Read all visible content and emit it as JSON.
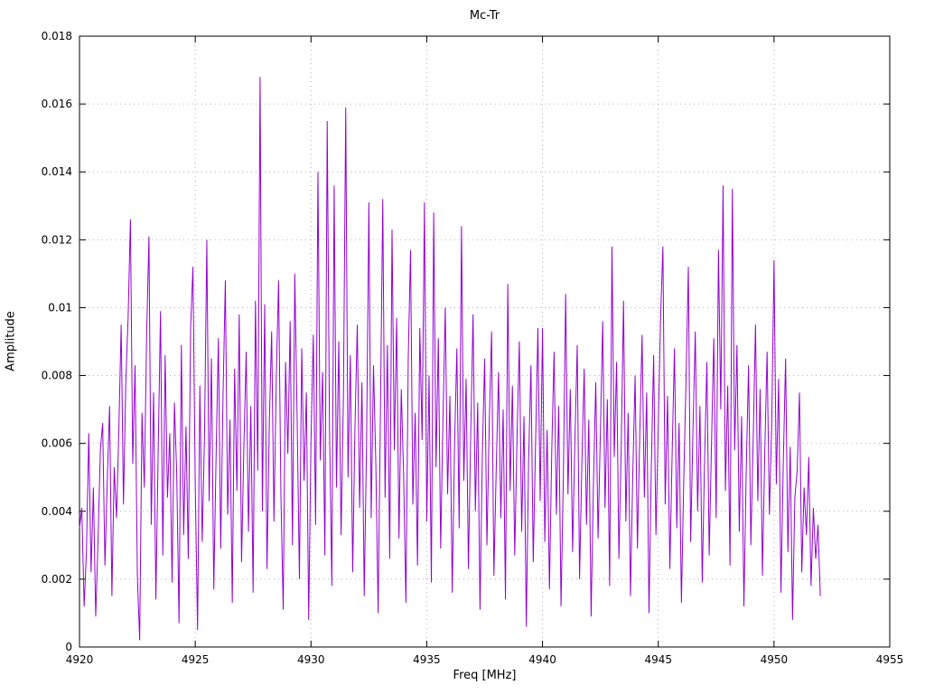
{
  "chart_data": {
    "type": "line",
    "title": "Mc-Tr",
    "xlabel": "Freq [MHz]",
    "ylabel": "Amplitude",
    "xlim": [
      4920,
      4955
    ],
    "ylim": [
      0,
      0.018
    ],
    "xticks": [
      4920,
      4925,
      4930,
      4935,
      4940,
      4945,
      4950,
      4955
    ],
    "xtick_labels": [
      "4920",
      "4925",
      "4930",
      "4935",
      "4940",
      "4945",
      "4950",
      "4955"
    ],
    "yticks": [
      0,
      0.002,
      0.004,
      0.006,
      0.008,
      0.01,
      0.012,
      0.014,
      0.016,
      0.018
    ],
    "ytick_labels": [
      "0",
      "0.002",
      "0.004",
      "0.006",
      "0.008",
      "0.01",
      "0.012",
      "0.014",
      "0.016",
      "0.018"
    ],
    "grid": true,
    "legend": "none",
    "line_color": "#9400d3",
    "grid_color": "#b0b0b0",
    "series": [
      {
        "name": "Mc-Tr",
        "x_start": 4920.0,
        "x_step": 0.1,
        "values": [
          0.0035,
          0.0041,
          0.0012,
          0.0028,
          0.0063,
          0.0022,
          0.0047,
          0.0009,
          0.0031,
          0.0058,
          0.0066,
          0.0024,
          0.0049,
          0.0071,
          0.0015,
          0.0053,
          0.0038,
          0.0064,
          0.0095,
          0.0042,
          0.0078,
          0.0097,
          0.0126,
          0.0054,
          0.0083,
          0.0021,
          0.0002,
          0.0069,
          0.0047,
          0.0092,
          0.0121,
          0.0036,
          0.0075,
          0.0014,
          0.0058,
          0.0099,
          0.0027,
          0.0086,
          0.0044,
          0.0063,
          0.0019,
          0.0072,
          0.0051,
          0.0007,
          0.0089,
          0.0033,
          0.0065,
          0.0026,
          0.0094,
          0.0112,
          0.0048,
          0.0005,
          0.0077,
          0.0031,
          0.0062,
          0.012,
          0.0043,
          0.0085,
          0.0017,
          0.0056,
          0.0091,
          0.0029,
          0.0074,
          0.0108,
          0.0039,
          0.0067,
          0.0013,
          0.0082,
          0.0046,
          0.0098,
          0.0025,
          0.0059,
          0.0087,
          0.0034,
          0.0071,
          0.0016,
          0.0102,
          0.0052,
          0.0168,
          0.004,
          0.0101,
          0.0023,
          0.0066,
          0.0093,
          0.0037,
          0.0079,
          0.0108,
          0.0045,
          0.0011,
          0.0084,
          0.0057,
          0.0096,
          0.003,
          0.011,
          0.0068,
          0.002,
          0.0088,
          0.0049,
          0.0075,
          0.0008,
          0.0061,
          0.0092,
          0.0036,
          0.014,
          0.0055,
          0.0081,
          0.0027,
          0.0155,
          0.0064,
          0.0018,
          0.0136,
          0.0047,
          0.009,
          0.0033,
          0.0073,
          0.0159,
          0.005,
          0.0086,
          0.0022,
          0.0065,
          0.0095,
          0.0041,
          0.0078,
          0.0015,
          0.006,
          0.0131,
          0.0038,
          0.0083,
          0.0054,
          0.001,
          0.007,
          0.0132,
          0.0044,
          0.0089,
          0.0026,
          0.0123,
          0.0058,
          0.0097,
          0.0032,
          0.0076,
          0.0051,
          0.0013,
          0.0085,
          0.0117,
          0.0042,
          0.0069,
          0.0024,
          0.0094,
          0.0061,
          0.0131,
          0.0037,
          0.008,
          0.0019,
          0.0128,
          0.0053,
          0.0091,
          0.0029,
          0.0067,
          0.01,
          0.0045,
          0.0074,
          0.0016,
          0.0059,
          0.0088,
          0.0035,
          0.0124,
          0.0049,
          0.0079,
          0.0023,
          0.0063,
          0.0098,
          0.004,
          0.0072,
          0.0011,
          0.0056,
          0.0085,
          0.003,
          0.0066,
          0.0093,
          0.0021,
          0.0052,
          0.0081,
          0.0038,
          0.007,
          0.0014,
          0.0107,
          0.0046,
          0.0077,
          0.0027,
          0.0062,
          0.009,
          0.0034,
          0.0068,
          0.0006,
          0.0055,
          0.0083,
          0.0025,
          0.006,
          0.0094,
          0.0043,
          0.0094,
          0.0031,
          0.0064,
          0.0017,
          0.0058,
          0.0087,
          0.0039,
          0.0071,
          0.0012,
          0.005,
          0.0104,
          0.0045,
          0.0076,
          0.0028,
          0.0061,
          0.0089,
          0.002,
          0.0054,
          0.0082,
          0.0036,
          0.0067,
          0.0009,
          0.0048,
          0.0078,
          0.0032,
          0.0063,
          0.0096,
          0.0041,
          0.0073,
          0.0018,
          0.0118,
          0.0056,
          0.0084,
          0.0026,
          0.0059,
          0.0102,
          0.0037,
          0.0069,
          0.0015,
          0.0051,
          0.008,
          0.0029,
          0.0062,
          0.0092,
          0.0044,
          0.0075,
          0.001,
          0.0053,
          0.0086,
          0.0033,
          0.0065,
          0.0097,
          0.0118,
          0.0042,
          0.0074,
          0.0023,
          0.0057,
          0.0088,
          0.0035,
          0.0066,
          0.0013,
          0.0049,
          0.0079,
          0.0112,
          0.0031,
          0.0064,
          0.0093,
          0.004,
          0.0071,
          0.0019,
          0.0055,
          0.0084,
          0.0027,
          0.006,
          0.0091,
          0.0038,
          0.0117,
          0.007,
          0.0136,
          0.0046,
          0.0077,
          0.0024,
          0.0135,
          0.0058,
          0.0089,
          0.0034,
          0.0068,
          0.0012,
          0.0052,
          0.0083,
          0.003,
          0.0061,
          0.0095,
          0.0043,
          0.0076,
          0.0021,
          0.0057,
          0.0087,
          0.0039,
          0.0065,
          0.0114,
          0.0048,
          0.0079,
          0.0016,
          0.0054,
          0.0085,
          0.0028,
          0.0059,
          0.0008,
          0.0044,
          0.0052,
          0.0075,
          0.0022,
          0.0047,
          0.0033,
          0.0056,
          0.0018,
          0.0041,
          0.0026,
          0.0036,
          0.0015
        ]
      }
    ]
  }
}
